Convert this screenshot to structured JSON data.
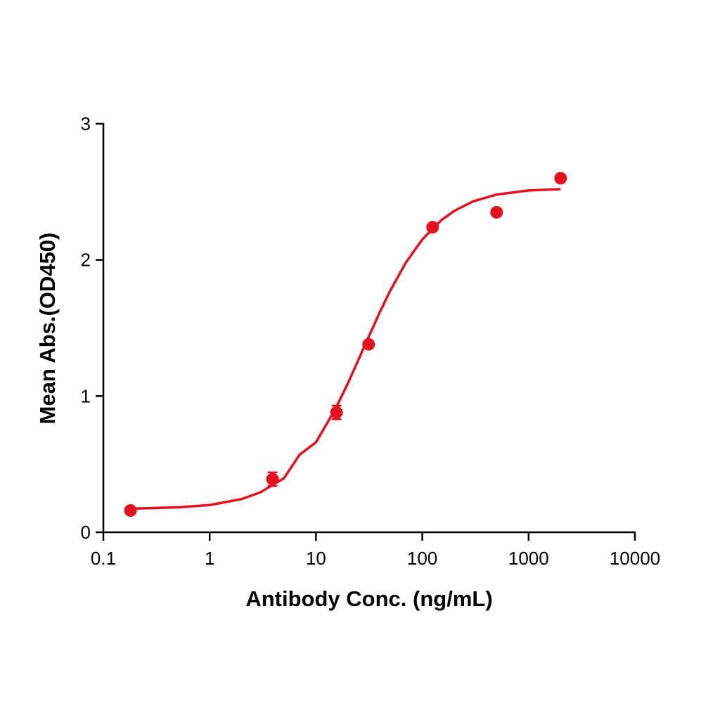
{
  "chart_data": {
    "type": "scatter",
    "x_label": "Antibody Conc. (ng/mL)",
    "y_label": "Mean Abs.(OD450)",
    "log_x": true,
    "xlim": [
      0.1,
      10000
    ],
    "xticks": [
      0.1,
      1,
      10,
      100,
      1000,
      10000
    ],
    "ylim": [
      0,
      3
    ],
    "yticks": [
      0,
      1,
      2,
      3
    ],
    "color": "#e3111e",
    "points": {
      "x": [
        0.18,
        3.9,
        15.6,
        31.25,
        125,
        500,
        2000
      ],
      "values": [
        0.16,
        0.39,
        0.88,
        1.38,
        2.24,
        2.35,
        2.6
      ],
      "errors": [
        null,
        0.05,
        0.05,
        null,
        null,
        null,
        null
      ]
    },
    "fit": {
      "x": [
        0.18,
        0.5,
        1,
        2,
        3,
        5,
        7,
        10,
        15,
        20,
        30,
        40,
        50,
        70,
        100,
        150,
        200,
        300,
        500,
        1000,
        2000
      ],
      "values": [
        0.173,
        0.183,
        0.2,
        0.244,
        0.293,
        0.397,
        0.569,
        0.661,
        0.896,
        1.095,
        1.403,
        1.619,
        1.775,
        1.98,
        2.15,
        2.29,
        2.36,
        2.43,
        2.48,
        2.51,
        2.52
      ]
    }
  }
}
